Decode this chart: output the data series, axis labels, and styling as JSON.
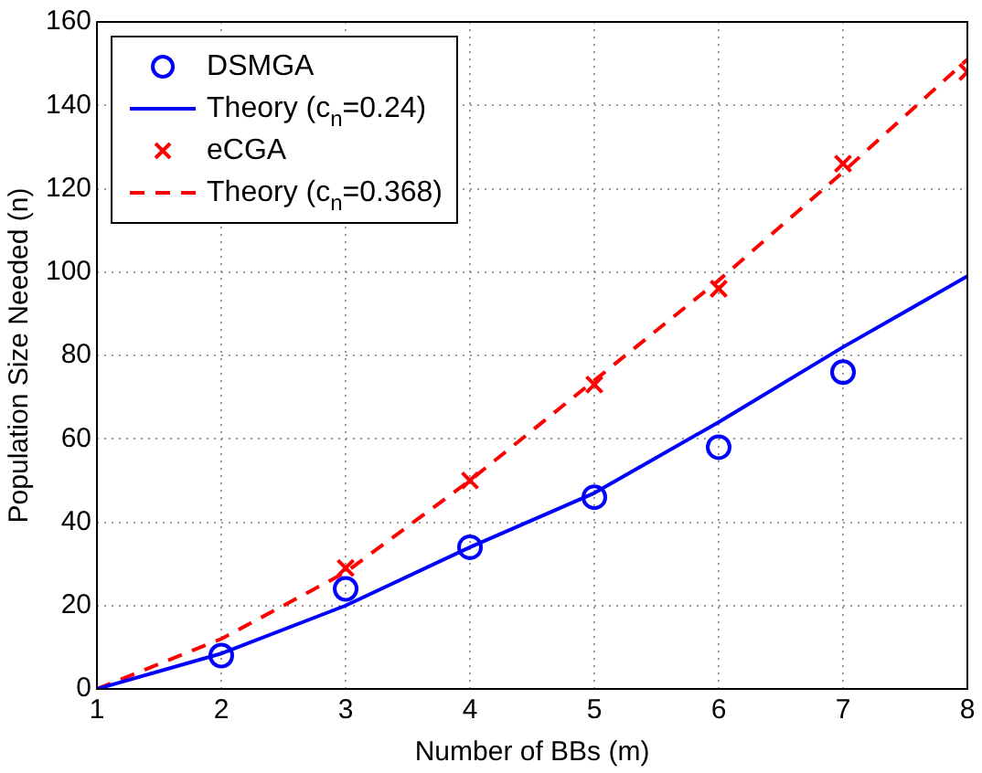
{
  "chart_data": {
    "type": "scatter",
    "xlabel": "Number of BBs (m)",
    "ylabel": "Population Size Needed (n)",
    "xlim": [
      1,
      8
    ],
    "ylim": [
      0,
      160
    ],
    "xticks": [
      1,
      2,
      3,
      4,
      5,
      6,
      7,
      8
    ],
    "yticks": [
      0,
      20,
      40,
      60,
      80,
      100,
      120,
      140,
      160
    ],
    "grid": true,
    "legend": "top left",
    "series": [
      {
        "name": "DSMGA",
        "type": "scatter",
        "color": "#0000ff",
        "marker": "circle",
        "x": [
          2,
          3,
          4,
          5,
          6,
          7
        ],
        "values": [
          8,
          24,
          34,
          46,
          58,
          76
        ]
      },
      {
        "name": "Theory (c$_{n}$=0.24)",
        "type": "line",
        "color": "#0000ff",
        "marker": "none",
        "line_style": "solid",
        "x": [
          1,
          2,
          3,
          4,
          5,
          6,
          7,
          8
        ],
        "values": [
          0,
          8.5,
          20,
          34,
          47,
          64,
          82,
          99
        ]
      },
      {
        "name": "eCGA",
        "type": "scatter",
        "color": "#ff0000",
        "marker": "cross",
        "x": [
          3,
          4,
          5,
          6,
          7,
          8
        ],
        "values": [
          29,
          50,
          73,
          96,
          126,
          148
        ]
      },
      {
        "name": "Theory (c$_{n}$=0.368)",
        "type": "line",
        "color": "#ff0000",
        "marker": "none",
        "line_style": "dashed",
        "x": [
          1,
          2,
          3,
          4,
          5,
          6,
          7,
          8
        ],
        "values": [
          0,
          12,
          28,
          50,
          74,
          98,
          124,
          151
        ]
      }
    ]
  }
}
